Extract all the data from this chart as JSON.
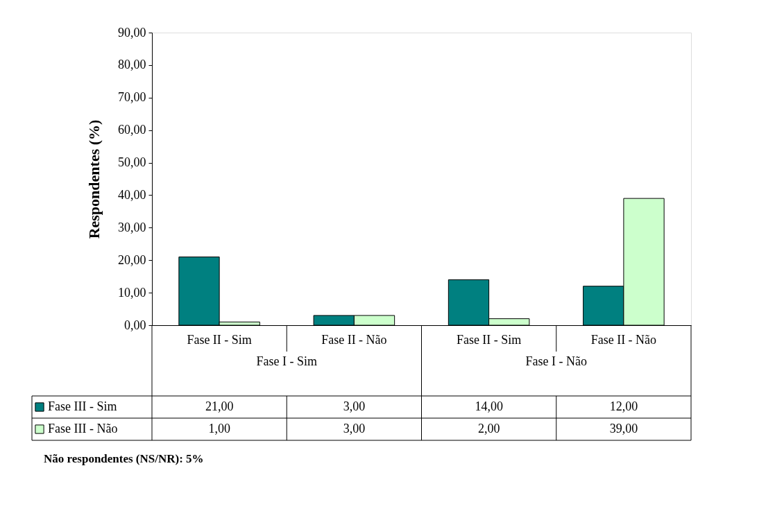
{
  "chart_data": {
    "type": "bar",
    "ylabel": "Respondentes (%)",
    "categories": [
      "Fase II - Sim",
      "Fase II - Não",
      "Fase II - Sim",
      "Fase II - Não"
    ],
    "series": [
      {
        "name": "Fase III - Sim",
        "color": "#008080",
        "values": [
          21,
          3,
          14,
          12
        ],
        "value_labels": [
          "21,00",
          "3,00",
          "14,00",
          "12,00"
        ]
      },
      {
        "name": "Fase III - Não",
        "color": "#ccffcc",
        "values": [
          1,
          3,
          2,
          39
        ],
        "value_labels": [
          "1,00",
          "3,00",
          "2,00",
          "39,00"
        ]
      }
    ],
    "ylim": [
      0,
      90
    ],
    "yticks": [
      {
        "value": 0,
        "label": "0,00"
      },
      {
        "value": 10,
        "label": "10,00"
      },
      {
        "value": 20,
        "label": "20,00"
      },
      {
        "value": 30,
        "label": "30,00"
      },
      {
        "value": 40,
        "label": "40,00"
      },
      {
        "value": 50,
        "label": "50,00"
      },
      {
        "value": 60,
        "label": "60,00"
      },
      {
        "value": 70,
        "label": "70,00"
      },
      {
        "value": 80,
        "label": "80,00"
      },
      {
        "value": 90,
        "label": "90,00"
      }
    ],
    "grid": false,
    "legend": "bottom left",
    "annotations": [
      "Fase I - Sim",
      "Fase I - Não",
      "Não respondentes (NS/NR): 5%"
    ]
  }
}
